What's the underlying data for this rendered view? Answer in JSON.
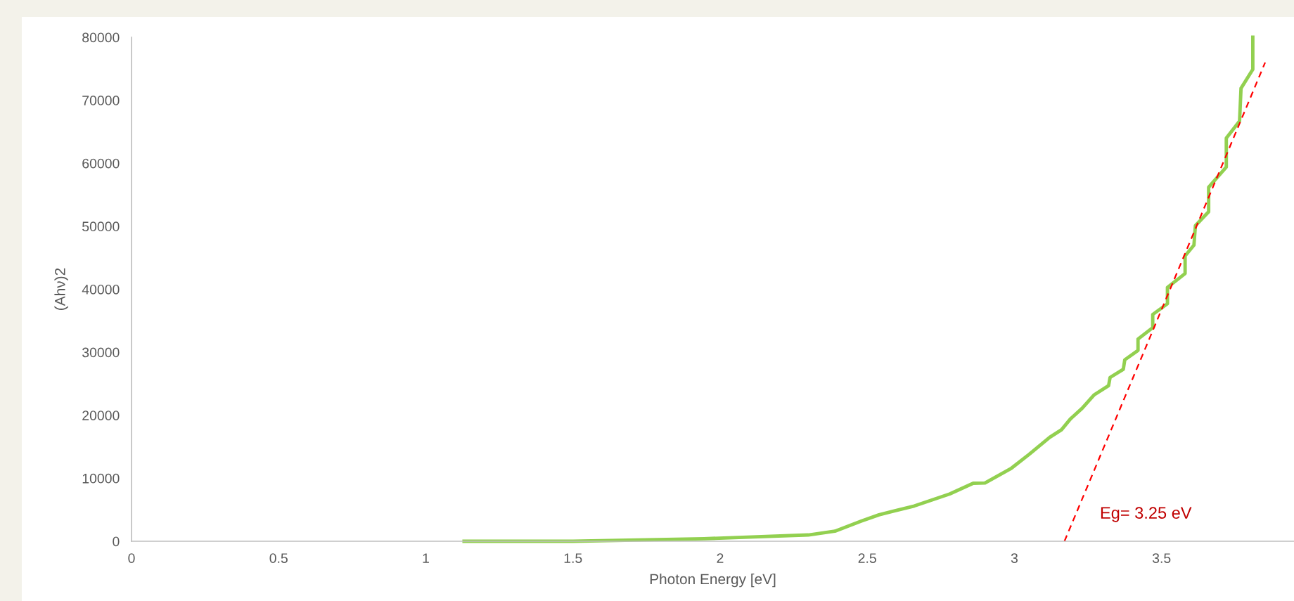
{
  "chart_data": {
    "type": "line",
    "xlabel": "Photon Energy [eV]",
    "ylabel": "(Ahν)2",
    "xlim": [
      0,
      3.95
    ],
    "xticks": [
      0,
      0.5,
      1,
      1.5,
      2,
      2.5,
      3,
      3.5
    ],
    "ylim": [
      0,
      80000
    ],
    "yticks": [
      0,
      10000,
      20000,
      30000,
      40000,
      50000,
      60000,
      70000,
      80000
    ],
    "grid": false,
    "legend": false,
    "marker": "none",
    "annotations": [
      "Eg= 3.25 eV"
    ],
    "series": [
      {
        "color": "#92d050",
        "line_style": "solid",
        "x": [
          1.13,
          1.5,
          1.945,
          2.3,
          2.39,
          2.48,
          2.54,
          2.66,
          2.78,
          2.86,
          2.9,
          2.99,
          3.05,
          3.12,
          3.16,
          3.19,
          3.23,
          3.27,
          3.32,
          3.325,
          3.37,
          3.375,
          3.42,
          3.42,
          3.47,
          3.47,
          3.52,
          3.52,
          3.58,
          3.58,
          3.61,
          3.615,
          3.66,
          3.66,
          3.72,
          3.72,
          3.765,
          3.77,
          3.81,
          3.81
        ],
        "values": [
          0,
          0,
          400,
          1000,
          1600,
          3200,
          4200,
          5600,
          7500,
          9200,
          9250,
          11600,
          13800,
          16500,
          17700,
          19400,
          21100,
          23200,
          24700,
          26000,
          27300,
          28800,
          30300,
          32100,
          33900,
          36000,
          37700,
          40300,
          42500,
          45300,
          47000,
          50100,
          52300,
          56200,
          59400,
          64000,
          66700,
          71900,
          74900,
          80000
        ]
      },
      {
        "type": "line",
        "color": "#ff0000",
        "line_style": "dashed",
        "x": [
          3.17,
          3.852
        ],
        "values": [
          0,
          76000
        ]
      }
    ]
  }
}
